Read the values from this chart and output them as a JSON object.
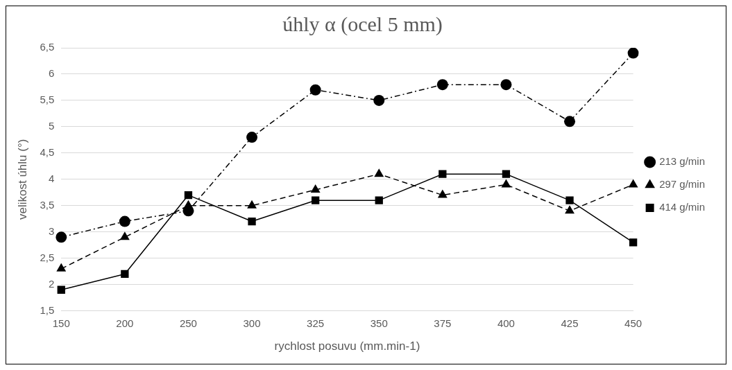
{
  "chart_data": {
    "type": "line",
    "title": "úhly α (ocel 5 mm)",
    "xlabel": "rychlost posuvu (mm.min-1)",
    "ylabel": "velikost úhlu (°)",
    "categories": [
      "150",
      "200",
      "250",
      "300",
      "325",
      "350",
      "375",
      "400",
      "425",
      "450"
    ],
    "series": [
      {
        "name": "213 g/min",
        "color": "#000000",
        "marker": "circle",
        "line_style": "dashdot",
        "values": [
          2.9,
          3.2,
          3.4,
          4.8,
          5.7,
          5.5,
          5.8,
          5.8,
          5.1,
          6.4
        ]
      },
      {
        "name": "297 g/min",
        "color": "#000000",
        "marker": "triangle",
        "line_style": "dashed",
        "values": [
          2.3,
          2.9,
          3.5,
          3.5,
          3.8,
          4.1,
          3.7,
          3.9,
          3.4,
          3.9
        ]
      },
      {
        "name": "414 g/min",
        "color": "#000000",
        "marker": "square",
        "line_style": "solid",
        "values": [
          1.9,
          2.2,
          3.7,
          3.2,
          3.6,
          3.6,
          4.1,
          4.1,
          3.6,
          2.8
        ]
      }
    ],
    "ylim": [
      1.5,
      6.5
    ],
    "yticks": [
      {
        "value": 1.5,
        "label": "1,5"
      },
      2,
      {
        "value": 2.5,
        "label": "2,5"
      },
      3,
      {
        "value": 3.5,
        "label": "3,5"
      },
      4,
      {
        "value": 4.5,
        "label": "4,5"
      },
      5,
      {
        "value": 5.5,
        "label": "5,5"
      },
      6,
      {
        "value": 6.5,
        "label": "6,5"
      }
    ],
    "grid": "y",
    "legend": "right"
  }
}
